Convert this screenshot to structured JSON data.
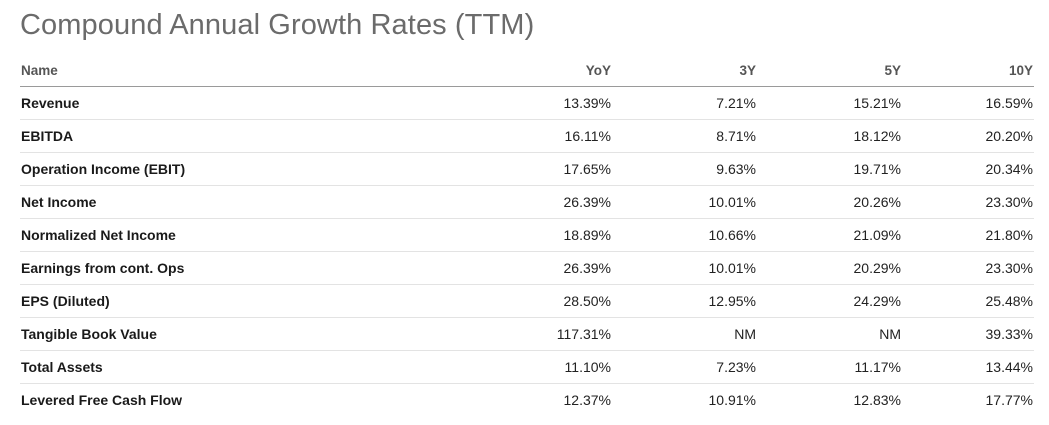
{
  "title": "Compound Annual Growth Rates (TTM)",
  "table": {
    "headers": [
      "Name",
      "YoY",
      "3Y",
      "5Y",
      "10Y"
    ],
    "rows": [
      {
        "name": "Revenue",
        "yoy": "13.39%",
        "y3": "7.21%",
        "y5": "15.21%",
        "y10": "16.59%"
      },
      {
        "name": "EBITDA",
        "yoy": "16.11%",
        "y3": "8.71%",
        "y5": "18.12%",
        "y10": "20.20%"
      },
      {
        "name": "Operation Income (EBIT)",
        "yoy": "17.65%",
        "y3": "9.63%",
        "y5": "19.71%",
        "y10": "20.34%"
      },
      {
        "name": "Net Income",
        "yoy": "26.39%",
        "y3": "10.01%",
        "y5": "20.26%",
        "y10": "23.30%"
      },
      {
        "name": "Normalized Net Income",
        "yoy": "18.89%",
        "y3": "10.66%",
        "y5": "21.09%",
        "y10": "21.80%"
      },
      {
        "name": "Earnings from cont. Ops",
        "yoy": "26.39%",
        "y3": "10.01%",
        "y5": "20.29%",
        "y10": "23.30%"
      },
      {
        "name": "EPS (Diluted)",
        "yoy": "28.50%",
        "y3": "12.95%",
        "y5": "24.29%",
        "y10": "25.48%"
      },
      {
        "name": "Tangible Book Value",
        "yoy": "117.31%",
        "y3": "NM",
        "y5": "NM",
        "y10": "39.33%"
      },
      {
        "name": "Total Assets",
        "yoy": "11.10%",
        "y3": "7.23%",
        "y5": "11.17%",
        "y10": "13.44%"
      },
      {
        "name": "Levered Free Cash Flow",
        "yoy": "12.37%",
        "y3": "10.91%",
        "y5": "12.83%",
        "y10": "17.77%"
      }
    ]
  }
}
